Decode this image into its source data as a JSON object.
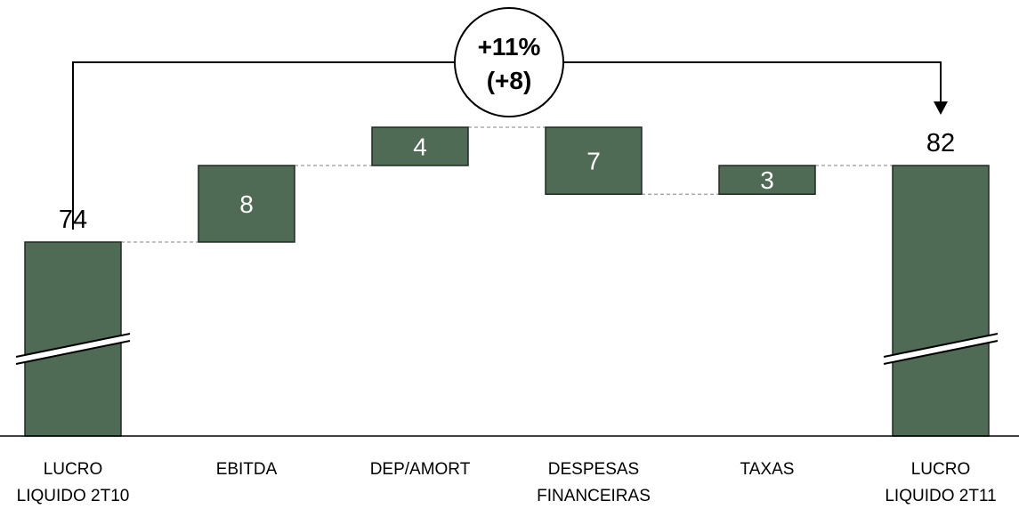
{
  "chart_data": {
    "type": "waterfall",
    "categories": [
      [
        "LUCRO",
        "LIQUIDO 2T10"
      ],
      [
        "EBITDA"
      ],
      [
        "DEP/AMORT"
      ],
      [
        "DESPESAS",
        "FINANCEIRAS"
      ],
      [
        "TAXAS"
      ],
      [
        "LUCRO",
        "LIQUIDO 2T11"
      ]
    ],
    "steps": [
      {
        "kind": "total",
        "value": 74,
        "label": "74"
      },
      {
        "kind": "increase",
        "value": 8,
        "label": "8"
      },
      {
        "kind": "increase",
        "value": 4,
        "label": "4"
      },
      {
        "kind": "decrease",
        "value": 7,
        "label": "7"
      },
      {
        "kind": "increase",
        "value": 3,
        "label": "3"
      },
      {
        "kind": "total",
        "value": 82,
        "label": "82"
      }
    ],
    "axis_break": true,
    "callout": {
      "line1": "+11%",
      "line2": "(+8)"
    },
    "colors": {
      "bar": "#4f6b55",
      "bar_stroke": "#1e2a21",
      "connector": "#9a9a9a"
    }
  }
}
